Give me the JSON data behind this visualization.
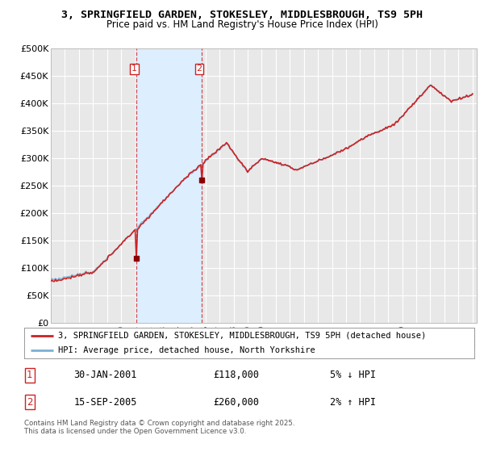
{
  "title_line1": "3, SPRINGFIELD GARDEN, STOKESLEY, MIDDLESBROUGH, TS9 5PH",
  "title_line2": "Price paid vs. HM Land Registry's House Price Index (HPI)",
  "ylabel_ticks": [
    "£0",
    "£50K",
    "£100K",
    "£150K",
    "£200K",
    "£250K",
    "£300K",
    "£350K",
    "£400K",
    "£450K",
    "£500K"
  ],
  "ytick_values": [
    0,
    50000,
    100000,
    150000,
    200000,
    250000,
    300000,
    350000,
    400000,
    450000,
    500000
  ],
  "x_start_year": 1995,
  "x_end_year": 2025,
  "background_color": "#ffffff",
  "plot_bg_color": "#e8e8e8",
  "hpi_line_color": "#7ab0d4",
  "price_line_color": "#cc2222",
  "shade_color": "#ddeeff",
  "transaction1": {
    "date_label": "30-JAN-2001",
    "year": 2001.08,
    "price": 118000,
    "label": "1",
    "pct": "5% ↓ HPI"
  },
  "transaction2": {
    "date_label": "15-SEP-2005",
    "year": 2005.71,
    "price": 260000,
    "label": "2",
    "pct": "2% ↑ HPI"
  },
  "legend_line1": "3, SPRINGFIELD GARDEN, STOKESLEY, MIDDLESBROUGH, TS9 5PH (detached house)",
  "legend_line2": "HPI: Average price, detached house, North Yorkshire",
  "footer": "Contains HM Land Registry data © Crown copyright and database right 2025.\nThis data is licensed under the Open Government Licence v3.0.",
  "grid_color": "#ffffff",
  "vline_color": "#cc2222",
  "vline_alpha": 0.8
}
